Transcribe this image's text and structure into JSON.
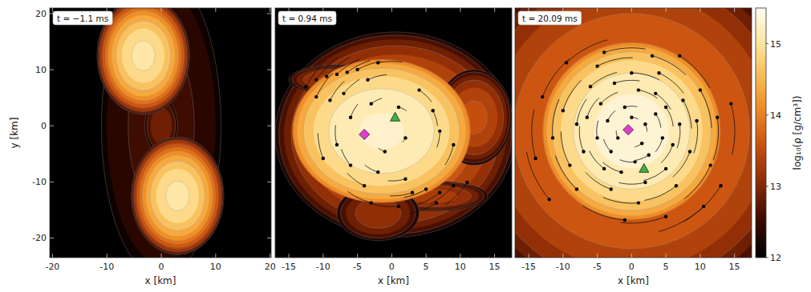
{
  "chart_data": [
    {
      "type": "density_map",
      "title": "t = −1.1 ms",
      "x_label": "x [km]",
      "y_label": "y [km]",
      "xlim": [
        -20.5,
        20.2
      ],
      "ylim": [
        -23.5,
        21
      ],
      "xticks": [
        -20,
        -10,
        0,
        10,
        20
      ],
      "yticks": [
        -20,
        -10,
        0,
        10,
        20
      ],
      "levels": [
        12,
        12.25,
        12.5,
        12.75,
        13,
        13.25,
        13.5,
        13.75,
        14,
        14.25,
        14.5,
        14.75,
        15,
        15.25,
        15.5
      ],
      "blobs": [
        {
          "x": 0,
          "y": 0,
          "rx": 11,
          "ry": 27,
          "log_rho_edge": 12,
          "log_rho_center": 12.6
        },
        {
          "x": 0,
          "y": 0,
          "rx": 3,
          "ry": 5,
          "log_rho_edge": 12,
          "log_rho_center": 13.0
        },
        {
          "x": -3.3,
          "y": 12.5,
          "rx": 8.5,
          "ry": 10.5,
          "log_rho_edge": 12,
          "log_rho_center": 15.1
        },
        {
          "x": 3,
          "y": -12.5,
          "rx": 8.5,
          "ry": 10.5,
          "log_rho_edge": 12,
          "log_rho_center": 15.1
        }
      ]
    },
    {
      "type": "density_map",
      "title": "t = 0.94 ms",
      "x_label": "x [km]",
      "tick_labels": "x",
      "xlim": [
        -17,
        17.5
      ],
      "ylim": [
        -18.5,
        18
      ],
      "xticks": [
        -15,
        -10,
        -5,
        0,
        5,
        10,
        15
      ],
      "levels": [
        12,
        12.25,
        12.5,
        12.75,
        13,
        13.25,
        13.5,
        13.75,
        14,
        14.25,
        14.5,
        14.75,
        15,
        15.25,
        15.5
      ],
      "blobs": [
        {
          "x": 0.5,
          "y": -0.5,
          "rx": 17.5,
          "ry": 15,
          "log_rho_edge": 12,
          "log_rho_center": 14.0
        },
        {
          "x": -8,
          "y": 7.5,
          "rx": 7,
          "ry": 2.2,
          "log_rho_edge": 12,
          "log_rho_center": 13.4
        },
        {
          "x": 6,
          "y": -9.5,
          "rx": 8,
          "ry": 2.2,
          "log_rho_edge": 12,
          "log_rho_center": 13.4
        },
        {
          "x": 12,
          "y": 2,
          "rx": 5.5,
          "ry": 7,
          "log_rho_edge": 12,
          "log_rho_center": 13.6
        },
        {
          "x": -2,
          "y": -12,
          "rx": 6,
          "ry": 4,
          "log_rho_edge": 12,
          "log_rho_center": 13.2
        },
        {
          "x": -1.5,
          "y": 0,
          "rx": 13,
          "ry": 10.5,
          "log_rho_edge": 13.75,
          "log_rho_center": 15.3
        }
      ],
      "points": [
        {
          "x": -4,
          "y": -0.5,
          "marker": "diamond",
          "color": "#e23bd0"
        },
        {
          "x": 0.5,
          "y": 2,
          "marker": "triangle",
          "color": "#3cb043"
        }
      ],
      "tracers": {
        "x": [
          -12.5,
          -11,
          -9.5,
          -8,
          -6.5,
          -5,
          -3.5,
          -11,
          -9,
          -7,
          -2,
          -6,
          -3,
          1,
          4,
          6,
          7,
          9,
          -8,
          -10,
          -6,
          -2,
          2,
          -4,
          3,
          5,
          7,
          9,
          11,
          6.5,
          1,
          -3,
          2,
          -1
        ],
        "y": [
          6.5,
          7.5,
          8,
          8.3,
          8.6,
          9,
          7.5,
          5,
          4.5,
          5.5,
          10,
          2,
          4,
          3.5,
          6,
          3,
          0,
          -2,
          -2,
          -4,
          -5,
          -6,
          -7,
          -8,
          -9,
          -8.5,
          -9,
          -8,
          -7.5,
          -10.5,
          -11,
          -10.5,
          -1,
          -3
        ]
      }
    },
    {
      "type": "density_map",
      "title": "t = 20.09 ms",
      "x_label": "x [km]",
      "tick_labels": "x",
      "xlim": [
        -17,
        17.5
      ],
      "ylim": [
        -18.5,
        18
      ],
      "xticks": [
        -15,
        -10,
        -5,
        0,
        5,
        10,
        15
      ],
      "levels": [
        12,
        12.25,
        12.5,
        12.75,
        13,
        13.25,
        13.5,
        13.75,
        14,
        14.25,
        14.5,
        14.75,
        15,
        15.25,
        15.5
      ],
      "blobs": [
        {
          "x": 0,
          "y": 0,
          "rx": 26,
          "ry": 26,
          "log_rho_edge": 12,
          "log_rho_center": 14.0
        },
        {
          "x": 0,
          "y": 0,
          "rx": 13,
          "ry": 13,
          "log_rho_edge": 13.75,
          "log_rho_center": 15.4
        }
      ],
      "points": [
        {
          "x": -0.5,
          "y": 0.2,
          "marker": "diamond",
          "color": "#e23bd0"
        },
        {
          "x": 1.8,
          "y": -5.5,
          "marker": "triangle",
          "color": "#3cb043"
        }
      ],
      "tracers": {
        "x": [
          0,
          2,
          1.5,
          -2,
          -1,
          3.5,
          -3.5,
          2.5,
          -3,
          4.5,
          0.5,
          -5,
          5,
          -4.5,
          1,
          -1.5,
          6,
          -6.5,
          3.5,
          -4,
          7,
          -2.5,
          5,
          -7,
          2,
          7.5,
          -6,
          -8,
          8.5,
          0,
          -3,
          4,
          -9,
          9.5,
          -5,
          6.5,
          -10,
          1,
          10,
          -8,
          -11.5,
          3,
          11.5,
          -4,
          12.5,
          -13,
          7,
          -9.5,
          13,
          -1,
          5,
          -14,
          14.5,
          10.5,
          -12
        ],
        "y": [
          2,
          1,
          -1.8,
          -1,
          3.5,
          2.5,
          1.5,
          -3.5,
          -3,
          -1,
          -4.5,
          -1,
          3.5,
          4,
          6,
          -6,
          -2,
          2,
          5.5,
          -5.5,
          1,
          7,
          -5.5,
          -3,
          -7.5,
          4.5,
          6.5,
          1,
          -3,
          8.5,
          -8.5,
          8.5,
          -5,
          1.5,
          9.5,
          -8,
          3,
          -10.5,
          6,
          -8.5,
          -1,
          11,
          -5,
          11.5,
          2,
          5,
          11,
          10,
          -8,
          -13,
          -12.5,
          -4,
          4,
          -11,
          -10
        ]
      },
      "colorbar": {
        "label": "log₁₀(ρ [g/cm³])",
        "range": [
          12,
          15.5
        ],
        "ticks": [
          12,
          13,
          14,
          15
        ]
      }
    }
  ]
}
